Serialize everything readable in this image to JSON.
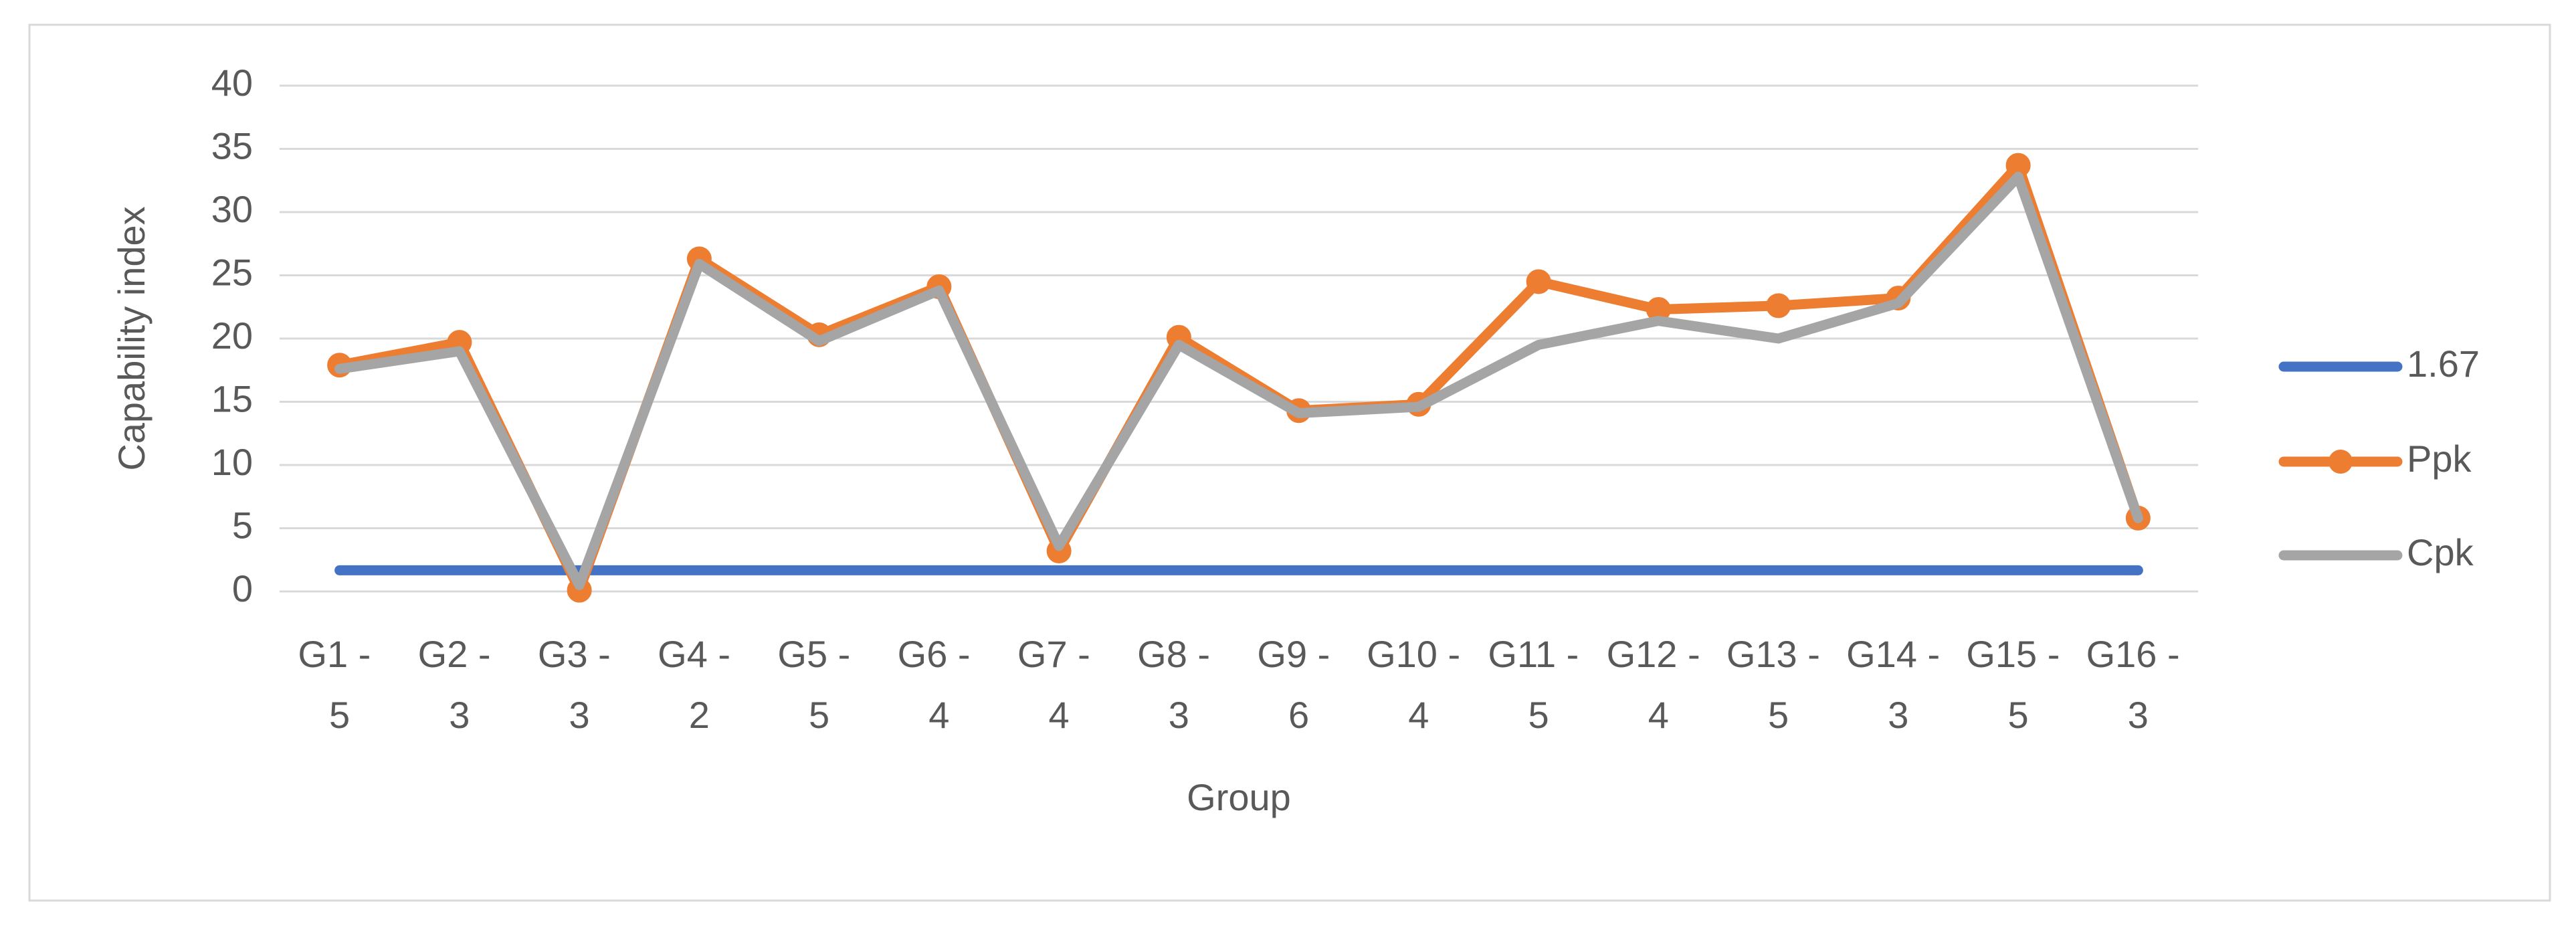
{
  "chart_data": {
    "type": "line",
    "x_label": "Group",
    "y_label": "Capability index",
    "categories": [
      "G1 - 5",
      "G2 - 3",
      "G3 - 3",
      "G4 - 2",
      "G5 - 5",
      "G6 - 4",
      "G7 - 4",
      "G8 - 3",
      "G9 - 6",
      "G10 - 4",
      "G11 - 5",
      "G12 - 4",
      "G13 - 5",
      "G14 - 3",
      "G15 - 5",
      "G16 - 3"
    ],
    "series": [
      {
        "name": "1.67",
        "color": "#4472c4",
        "marker": false,
        "values": [
          1.67,
          1.67,
          1.67,
          1.67,
          1.67,
          1.67,
          1.67,
          1.67,
          1.67,
          1.67,
          1.67,
          1.67,
          1.67,
          1.67,
          1.67,
          1.67
        ]
      },
      {
        "name": "Ppk",
        "color": "#ed7d31",
        "marker": true,
        "values": [
          17.9,
          19.7,
          0.1,
          26.3,
          20.3,
          24.1,
          3.2,
          20.1,
          14.3,
          14.8,
          24.5,
          22.3,
          22.6,
          23.2,
          33.7,
          5.8
        ]
      },
      {
        "name": "Cpk",
        "color": "#a5a5a5",
        "marker": false,
        "values": [
          17.6,
          19.0,
          0.5,
          25.9,
          19.8,
          23.8,
          3.6,
          19.5,
          14.1,
          14.6,
          19.5,
          21.4,
          20.0,
          22.8,
          32.8,
          5.8
        ]
      }
    ],
    "ylim": [
      0,
      40
    ],
    "yticks": [
      0,
      5,
      10,
      15,
      20,
      25,
      30,
      35,
      40
    ],
    "grid": true,
    "legend": "right"
  }
}
